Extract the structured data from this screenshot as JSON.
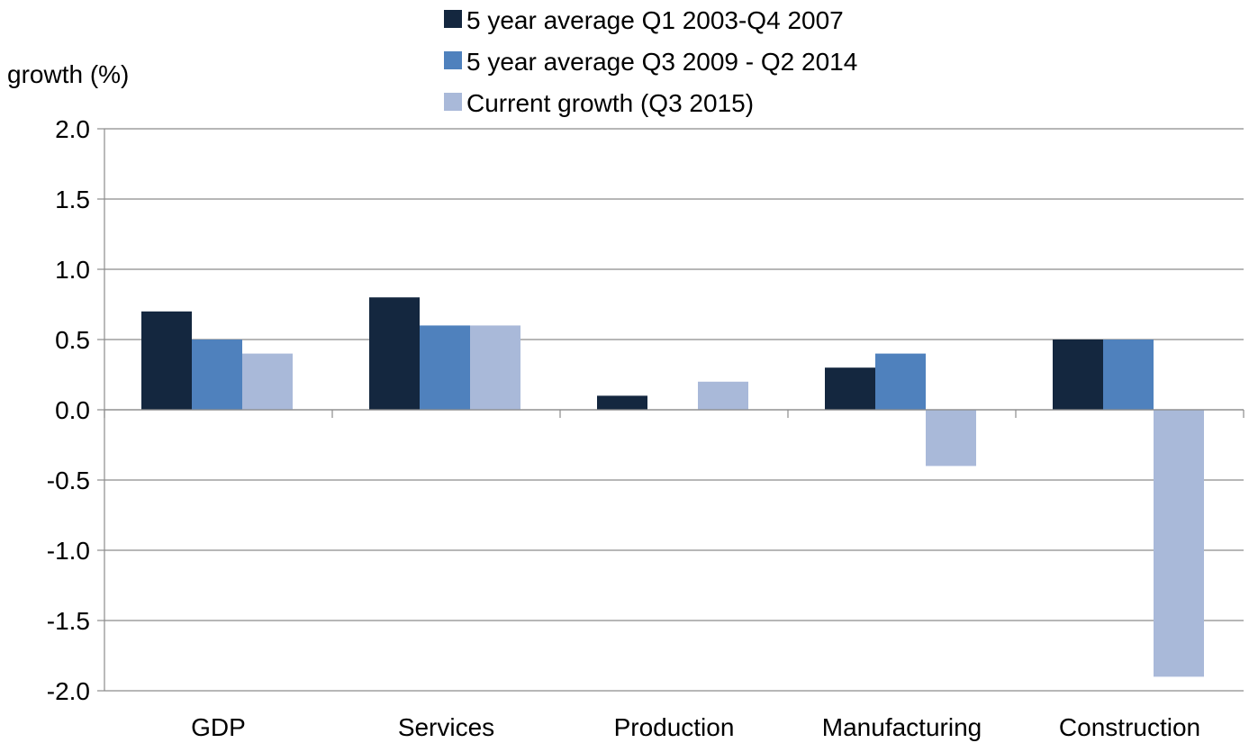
{
  "chart_data": {
    "type": "bar",
    "title": "",
    "ylabel": "growth (%)",
    "xlabel": "",
    "ylim": [
      -2.0,
      2.0
    ],
    "yticks": [
      -2.0,
      -1.5,
      -1.0,
      -0.5,
      0.0,
      0.5,
      1.0,
      1.5,
      2.0
    ],
    "ytick_labels": [
      "-2.0",
      "-1.5",
      "-1.0",
      "-0.5",
      "0.0",
      "0.5",
      "1.0",
      "1.5",
      "2.0"
    ],
    "grid": true,
    "legend_position": "top",
    "categories": [
      "GDP",
      "Services",
      "Production",
      "Manufacturing",
      "Construction"
    ],
    "series": [
      {
        "name": "5 year average Q1 2003-Q4 2007",
        "color": "#14273f",
        "values": [
          0.7,
          0.8,
          0.1,
          0.3,
          0.5
        ]
      },
      {
        "name": "5 year average Q3 2009 - Q2 2014",
        "color": "#4f81bd",
        "values": [
          0.5,
          0.6,
          0.0,
          0.4,
          0.5
        ]
      },
      {
        "name": "Current growth (Q3 2015)",
        "color": "#a9b9d9",
        "values": [
          0.4,
          0.6,
          0.2,
          -0.4,
          -1.9
        ]
      }
    ]
  }
}
